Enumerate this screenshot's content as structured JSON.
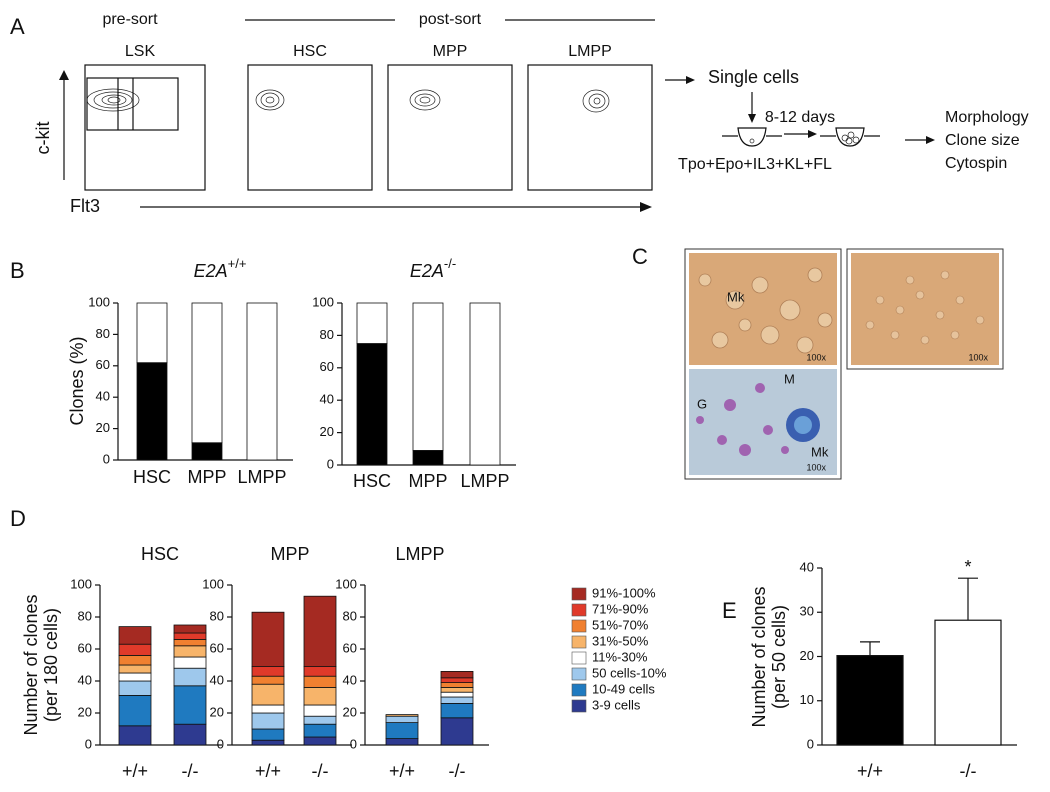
{
  "panel_labels": [
    "A",
    "B",
    "C",
    "D",
    "E"
  ],
  "panel_a": {
    "pre_sort": "pre-sort",
    "post_sort": "post-sort",
    "plots": [
      "LSK",
      "HSC",
      "MPP",
      "LMPP"
    ],
    "y_axis": "c-kit",
    "x_axis": "Flt3",
    "workflow": {
      "single_cells": "Single cells",
      "duration": "8-12 days",
      "media": "Tpo+Epo+IL3+KL+FL",
      "readouts": [
        "Morphology",
        "Clone size",
        "Cytospin"
      ]
    }
  },
  "panel_c": {
    "images": [
      {
        "labels": [
          "Mk",
          "100x"
        ]
      },
      {
        "labels": [
          "100x"
        ]
      },
      {
        "labels": [
          "G",
          "M",
          "Mk",
          "100x"
        ]
      }
    ]
  },
  "chart_data": [
    {
      "type": "stacked_bar",
      "title": {
        "text": "E2A",
        "superscript": "+/+"
      },
      "y_label": [
        "Clones (%)"
      ],
      "categories": [
        "HSC",
        "MPP",
        "LMPP"
      ],
      "series": [
        {
          "color": "#000000",
          "values": [
            62,
            11,
            0
          ]
        },
        {
          "color": "#ffffff",
          "values": [
            38,
            89,
            100
          ]
        }
      ],
      "ylim": [
        0,
        100
      ],
      "yticks": [
        0,
        20,
        40,
        60,
        80,
        100
      ]
    },
    {
      "type": "stacked_bar",
      "title": {
        "text": "E2A",
        "superscript": "-/-"
      },
      "categories": [
        "HSC",
        "MPP",
        "LMPP"
      ],
      "series": [
        {
          "color": "#000000",
          "values": [
            75,
            9,
            0
          ]
        },
        {
          "color": "#ffffff",
          "values": [
            25,
            91,
            100
          ]
        }
      ],
      "ylim": [
        0,
        100
      ],
      "yticks": [
        0,
        20,
        40,
        60,
        80,
        100
      ]
    },
    {
      "type": "stacked_bar",
      "title": "HSC",
      "y_label": [
        "Number of clones",
        "(per 180 cells)"
      ],
      "categories": [
        "+/+",
        "-/-"
      ],
      "series": [
        {
          "name": "3-9 cells",
          "color": "#2e3a90",
          "values": [
            12,
            13
          ]
        },
        {
          "name": "10-49 cells",
          "color": "#1f7ac0",
          "values": [
            19,
            24
          ]
        },
        {
          "name": "50 cells-10%",
          "color": "#9ec8ec",
          "values": [
            9,
            11
          ]
        },
        {
          "name": "11%-30%",
          "color": "#ffffff",
          "values": [
            5,
            7
          ]
        },
        {
          "name": "31%-50%",
          "color": "#f7b46a",
          "values": [
            5,
            7
          ]
        },
        {
          "name": "51%-70%",
          "color": "#f08030",
          "values": [
            6,
            4
          ]
        },
        {
          "name": "71%-90%",
          "color": "#e03a2a",
          "values": [
            7,
            4
          ]
        },
        {
          "name": "91%-100%",
          "color": "#a52a22",
          "values": [
            11,
            5
          ]
        }
      ],
      "ylim": [
        0,
        100
      ],
      "yticks": [
        0,
        20,
        40,
        60,
        80,
        100
      ]
    },
    {
      "type": "stacked_bar",
      "title": "MPP",
      "categories": [
        "+/+",
        "-/-"
      ],
      "series": [
        {
          "color": "#2e3a90",
          "values": [
            3,
            5
          ]
        },
        {
          "color": "#1f7ac0",
          "values": [
            7,
            8
          ]
        },
        {
          "color": "#9ec8ec",
          "values": [
            10,
            5
          ]
        },
        {
          "color": "#ffffff",
          "values": [
            5,
            7
          ]
        },
        {
          "color": "#f7b46a",
          "values": [
            13,
            11
          ]
        },
        {
          "color": "#f08030",
          "values": [
            5,
            7
          ]
        },
        {
          "color": "#e03a2a",
          "values": [
            6,
            6
          ]
        },
        {
          "color": "#a52a22",
          "values": [
            34,
            44
          ]
        }
      ],
      "ylim": [
        0,
        100
      ],
      "yticks": [
        0,
        20,
        40,
        60,
        80,
        100
      ]
    },
    {
      "type": "stacked_bar",
      "title": "LMPP",
      "categories": [
        "+/+",
        "-/-"
      ],
      "series": [
        {
          "color": "#2e3a90",
          "values": [
            4,
            17
          ]
        },
        {
          "color": "#1f7ac0",
          "values": [
            10,
            9
          ]
        },
        {
          "color": "#9ec8ec",
          "values": [
            4,
            4
          ]
        },
        {
          "color": "#ffffff",
          "values": [
            0,
            3
          ]
        },
        {
          "color": "#f7b46a",
          "values": [
            1,
            3
          ]
        },
        {
          "color": "#f08030",
          "values": [
            0,
            3
          ]
        },
        {
          "color": "#e03a2a",
          "values": [
            0,
            3
          ]
        },
        {
          "color": "#a52a22",
          "values": [
            0,
            4
          ]
        }
      ],
      "ylim": [
        0,
        100
      ],
      "yticks": [
        0,
        20,
        40,
        60,
        80,
        100
      ]
    },
    {
      "type": "bar",
      "y_label": [
        "Number of clones",
        "(per 50 cells)"
      ],
      "categories": [
        "+/+",
        "-/-"
      ],
      "values": [
        20.2,
        28.2
      ],
      "errors": [
        3.1,
        9.5
      ],
      "colors": [
        "#000000",
        "#ffffff"
      ],
      "annotation": "*",
      "ylim": [
        0,
        40
      ],
      "yticks": [
        0,
        10,
        20,
        30,
        40
      ]
    }
  ]
}
